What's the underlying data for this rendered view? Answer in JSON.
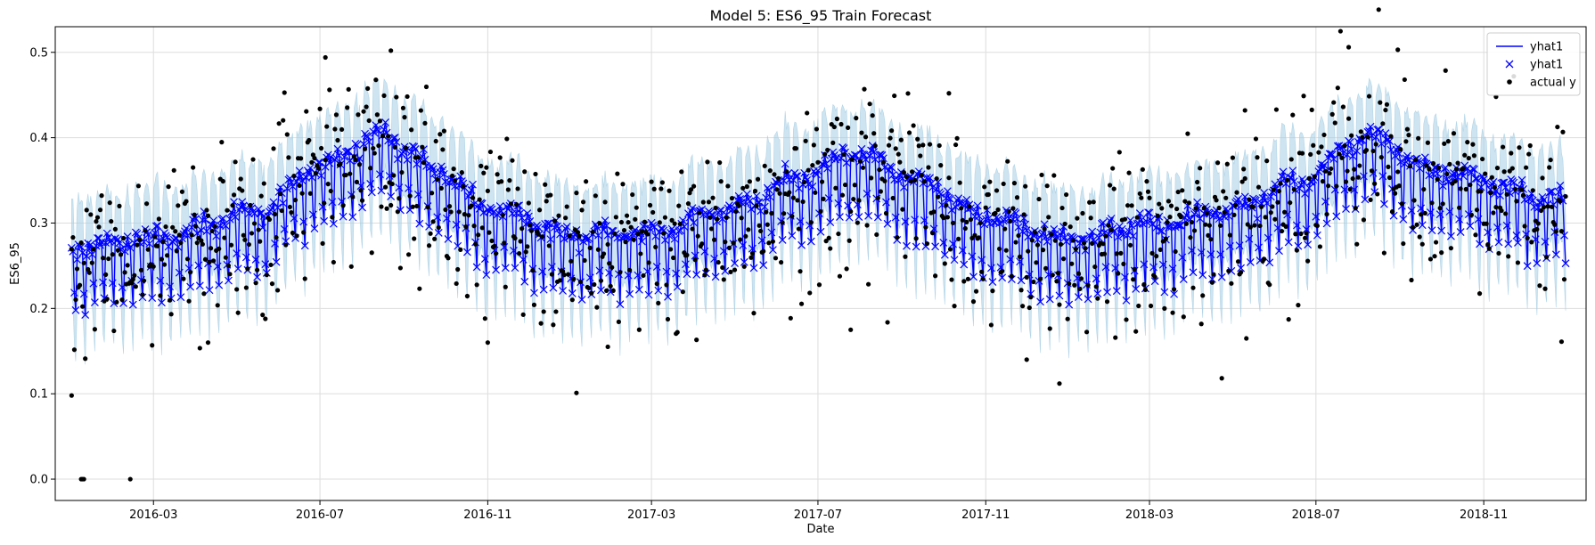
{
  "chart_data": {
    "type": "line",
    "title": "Model 5: ES6_95 Train Forecast",
    "xlabel": "Date",
    "ylabel": "ES6_95",
    "xlim": [
      "2015-12-20",
      "2019-01-15"
    ],
    "ylim": [
      -0.025,
      0.53
    ],
    "x_ticks": [
      {
        "date": "2016-03-01",
        "label": "2016-03"
      },
      {
        "date": "2016-07-01",
        "label": "2016-07"
      },
      {
        "date": "2016-11-01",
        "label": "2016-11"
      },
      {
        "date": "2017-03-01",
        "label": "2017-03"
      },
      {
        "date": "2017-07-01",
        "label": "2017-07"
      },
      {
        "date": "2017-11-01",
        "label": "2017-11"
      },
      {
        "date": "2018-03-01",
        "label": "2018-03"
      },
      {
        "date": "2018-07-01",
        "label": "2018-07"
      },
      {
        "date": "2018-11-01",
        "label": "2018-11"
      }
    ],
    "y_ticks": [
      {
        "value": 0.0,
        "label": "0.0"
      },
      {
        "value": 0.1,
        "label": "0.1"
      },
      {
        "value": 0.2,
        "label": "0.2"
      },
      {
        "value": 0.3,
        "label": "0.3"
      },
      {
        "value": 0.4,
        "label": "0.4"
      },
      {
        "value": 0.5,
        "label": "0.5"
      }
    ],
    "grid": true,
    "legend": {
      "placement": "upper-right",
      "entries": [
        {
          "label": "yhat1",
          "kind": "line"
        },
        {
          "label": "yhat1",
          "kind": "x-marker"
        },
        {
          "label": "actual y",
          "kind": "dot"
        }
      ]
    },
    "colors": {
      "forecast": "#0000ff",
      "interval": "#a6cee3",
      "actual": "#000000",
      "grid": "#dddddd"
    },
    "date_range": [
      "2016-01-01",
      "2018-12-31"
    ],
    "sampling": "daily",
    "trend_knots": [
      {
        "date": "2016-01-01",
        "value": 0.255
      },
      {
        "date": "2016-03-01",
        "value": 0.265
      },
      {
        "date": "2016-05-15",
        "value": 0.295
      },
      {
        "date": "2016-07-01",
        "value": 0.35
      },
      {
        "date": "2016-08-15",
        "value": 0.385
      },
      {
        "date": "2016-09-25",
        "value": 0.345
      },
      {
        "date": "2016-11-01",
        "value": 0.3
      },
      {
        "date": "2017-01-01",
        "value": 0.27
      },
      {
        "date": "2017-03-01",
        "value": 0.272
      },
      {
        "date": "2017-05-01",
        "value": 0.3
      },
      {
        "date": "2017-06-15",
        "value": 0.335
      },
      {
        "date": "2017-08-01",
        "value": 0.365
      },
      {
        "date": "2017-09-15",
        "value": 0.33
      },
      {
        "date": "2017-11-01",
        "value": 0.29
      },
      {
        "date": "2018-01-01",
        "value": 0.265
      },
      {
        "date": "2018-03-01",
        "value": 0.28
      },
      {
        "date": "2018-05-01",
        "value": 0.3
      },
      {
        "date": "2018-06-15",
        "value": 0.33
      },
      {
        "date": "2018-08-10",
        "value": 0.385
      },
      {
        "date": "2018-09-25",
        "value": 0.345
      },
      {
        "date": "2018-12-31",
        "value": 0.31
      }
    ],
    "weekly_pattern": [
      -0.055,
      0.015,
      0.02,
      0.022,
      0.018,
      0.012,
      -0.032
    ],
    "interval_halfwidth": 0.055,
    "actual_noise_sd": 0.042,
    "actual_outliers": [
      {
        "date": "2016-01-01",
        "value": 0.098
      },
      {
        "date": "2016-01-08",
        "value": 0.0
      },
      {
        "date": "2016-01-09",
        "value": 0.0
      },
      {
        "date": "2016-01-10",
        "value": 0.0
      },
      {
        "date": "2016-02-13",
        "value": 0.0
      },
      {
        "date": "2016-04-10",
        "value": 0.16
      },
      {
        "date": "2016-07-05",
        "value": 0.494
      },
      {
        "date": "2016-08-22",
        "value": 0.502
      },
      {
        "date": "2016-11-01",
        "value": 0.16
      },
      {
        "date": "2017-01-05",
        "value": 0.101
      },
      {
        "date": "2017-01-28",
        "value": 0.155
      },
      {
        "date": "2017-07-25",
        "value": 0.175
      },
      {
        "date": "2017-10-05",
        "value": 0.452
      },
      {
        "date": "2017-12-01",
        "value": 0.14
      },
      {
        "date": "2017-12-25",
        "value": 0.112
      },
      {
        "date": "2018-05-10",
        "value": 0.432
      },
      {
        "date": "2018-07-25",
        "value": 0.506
      },
      {
        "date": "2018-08-30",
        "value": 0.503
      },
      {
        "date": "2018-11-10",
        "value": 0.448
      },
      {
        "date": "2018-12-28",
        "value": 0.161
      }
    ]
  }
}
